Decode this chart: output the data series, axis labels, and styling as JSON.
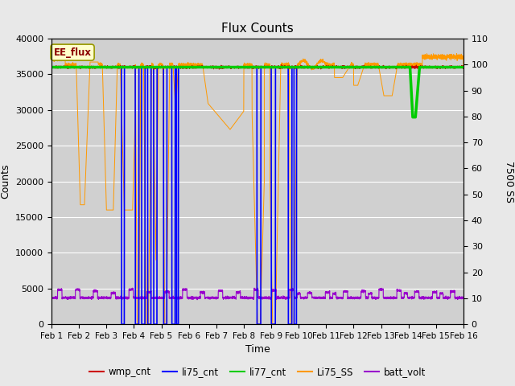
{
  "title": "Flux Counts",
  "xlabel": "Time",
  "ylabel_left": "Counts",
  "ylabel_right": "7500 SS",
  "xlim": [
    0,
    15
  ],
  "ylim_left": [
    0,
    40000
  ],
  "ylim_right": [
    0,
    110
  ],
  "xtick_labels": [
    "Feb 1",
    "Feb 2",
    "Feb 3",
    "Feb 4",
    "Feb 5",
    "Feb 6",
    "Feb 7",
    "Feb 8",
    "Feb 9",
    "Feb 10",
    "Feb 11",
    "Feb 12",
    "Feb 13",
    "Feb 14",
    "Feb 15",
    "Feb 16"
  ],
  "yticks_left": [
    0,
    5000,
    10000,
    15000,
    20000,
    25000,
    30000,
    35000,
    40000
  ],
  "yticks_right": [
    0,
    10,
    20,
    30,
    40,
    50,
    60,
    70,
    80,
    90,
    100,
    110
  ],
  "bg_color": "#e8e8e8",
  "plot_bg_color": "#d0d0d0",
  "ee_flux_label": "EE_flux",
  "legend_entries": [
    "wmp_cnt",
    "li75_cnt",
    "li77_cnt",
    "Li75_SS",
    "batt_volt"
  ],
  "legend_colors": [
    "#cc0000",
    "#0000cc",
    "#00cc00",
    "#ff9900",
    "#9900cc"
  ],
  "wmp_color": "#cc0000",
  "li75_color": "#0000ff",
  "li77_color": "#00cc00",
  "li75ss_color": "#ff9900",
  "batt_color": "#9900cc",
  "figsize": [
    6.4,
    4.8
  ],
  "dpi": 100
}
